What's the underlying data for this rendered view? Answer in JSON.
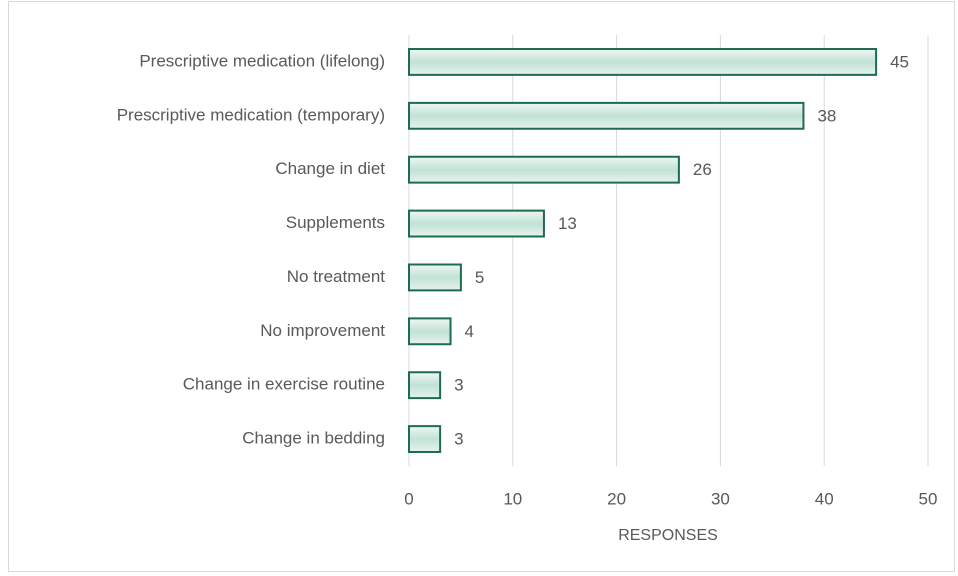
{
  "chart_data": {
    "type": "bar",
    "orientation": "horizontal",
    "x_label": "RESPONSES",
    "categories": [
      "Prescriptive medication (lifelong)",
      "Prescriptive medication (temporary)",
      "Change in diet",
      "Supplements",
      "No treatment",
      "No improvement",
      "Change in exercise routine",
      "Change in bedding"
    ],
    "values": [
      45,
      38,
      26,
      13,
      5,
      4,
      3,
      3
    ],
    "color": "#d4ece2",
    "edge_color": "#1e6b50",
    "xlim": [
      0,
      50
    ],
    "xticks": [
      0,
      10,
      20,
      30,
      40,
      50
    ],
    "grid": true
  }
}
